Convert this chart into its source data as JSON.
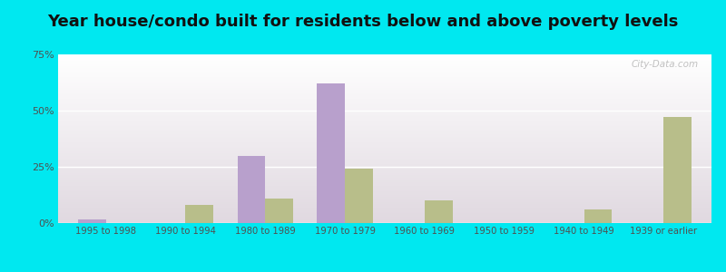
{
  "title": "Year house/condo built for residents below and above poverty levels",
  "categories": [
    "1995 to 1998",
    "1990 to 1994",
    "1980 to 1989",
    "1970 to 1979",
    "1960 to 1969",
    "1950 to 1959",
    "1940 to 1949",
    "1939 or earlier"
  ],
  "below_poverty": [
    1.5,
    0,
    30,
    62,
    0,
    0,
    0,
    0
  ],
  "above_poverty": [
    0,
    8,
    11,
    24,
    10,
    0,
    6,
    47
  ],
  "below_color": "#b8a0cc",
  "above_color": "#b8be8a",
  "ylim": [
    0,
    75
  ],
  "yticks": [
    0,
    25,
    50,
    75
  ],
  "ytick_labels": [
    "0%",
    "25%",
    "50%",
    "75%"
  ],
  "background_outer": "#00e8f0",
  "bar_width": 0.35,
  "title_fontsize": 13
}
